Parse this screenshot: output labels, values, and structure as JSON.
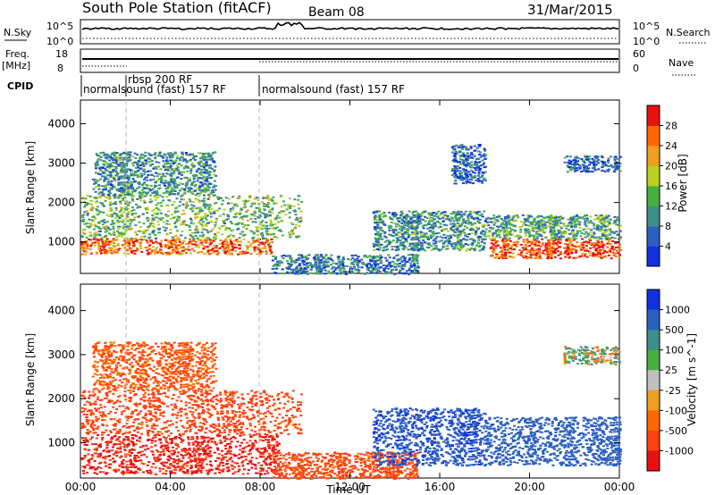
{
  "header": {
    "title": "South Pole Station (fitACF)",
    "beam": "Beam 08",
    "date": "31/Mar/2015"
  },
  "top_panels": {
    "nsky_label": "N.Sky",
    "nsearch_label": "N.Search",
    "nsky_ticks": [
      "10^5",
      "10^0"
    ],
    "nsearch_ticks": [
      "10^5",
      "10^0"
    ],
    "freq_label": "Freq.",
    "freq_unit": "[MHz]",
    "freq_ticks": [
      "18",
      "8"
    ],
    "nave_label": "Nave",
    "nave_ticks": [
      "60",
      "0"
    ],
    "cpid_label": "CPID",
    "cpid_segments": [
      {
        "start": "00:00",
        "text": "normalsound (fast) 157 RF"
      },
      {
        "start": "02:00",
        "text": "rbsp 200 RF"
      },
      {
        "start": "08:00",
        "text": "normalsound (fast) 157 RF"
      }
    ]
  },
  "chart_data": [
    {
      "type": "heatmap",
      "name": "power-panel",
      "ylabel": "Slant Range [km]",
      "yticks": [
        1000,
        2000,
        3000,
        4000
      ],
      "ylim": [
        200,
        4600
      ],
      "xlim_hours": [
        0,
        24
      ],
      "colorbar": {
        "label": "Power [dB]",
        "ticks": [
          4,
          8,
          12,
          16,
          20,
          24,
          28
        ],
        "colors": [
          "#1030e0",
          "#2b5fc0",
          "#3d8f8a",
          "#46b040",
          "#b8d020",
          "#f0a020",
          "#ff6a00",
          "#e81010"
        ]
      },
      "echo_regions": [
        {
          "x": [
            0,
            8.5
          ],
          "y": [
            700,
            1100
          ],
          "value": 26
        },
        {
          "x": [
            0,
            9.8
          ],
          "y": [
            1100,
            2200
          ],
          "value": 14
        },
        {
          "x": [
            0.5,
            6
          ],
          "y": [
            2200,
            3300
          ],
          "value": 10
        },
        {
          "x": [
            8.5,
            15
          ],
          "y": [
            200,
            700
          ],
          "value": 8
        },
        {
          "x": [
            13,
            18
          ],
          "y": [
            800,
            1800
          ],
          "value": 10
        },
        {
          "x": [
            16.5,
            18
          ],
          "y": [
            2500,
            3500
          ],
          "value": 6
        },
        {
          "x": [
            18.2,
            24
          ],
          "y": [
            600,
            1100
          ],
          "value": 28
        },
        {
          "x": [
            18,
            24
          ],
          "y": [
            1100,
            1700
          ],
          "value": 12
        },
        {
          "x": [
            21.5,
            24
          ],
          "y": [
            2800,
            3200
          ],
          "value": 6
        }
      ]
    },
    {
      "type": "heatmap",
      "name": "velocity-panel",
      "ylabel": "Slant Range [km]",
      "yticks": [
        1000,
        2000,
        3000,
        4000
      ],
      "ylim": [
        200,
        4600
      ],
      "xlim_hours": [
        0,
        24
      ],
      "xlabel": "Time UT",
      "xticks": [
        "00:00",
        "04:00",
        "08:00",
        "12:00",
        "16:00",
        "20:00",
        "00:00"
      ],
      "colorbar": {
        "label": "Velocity [m s^-1]",
        "ticks": [
          1000,
          500,
          100,
          25,
          -25,
          -100,
          -500,
          -1000
        ],
        "colors": [
          "#1030e0",
          "#2b5fc0",
          "#3d8f8a",
          "#46b040",
          "#c0c0c0",
          "#f0a020",
          "#ff6a00",
          "#ff4010",
          "#e81010"
        ]
      },
      "echo_regions": [
        {
          "x": [
            0,
            8.8
          ],
          "y": [
            300,
            1200
          ],
          "value": -300
        },
        {
          "x": [
            0,
            9.8
          ],
          "y": [
            1200,
            2200
          ],
          "value": -100
        },
        {
          "x": [
            0.5,
            6
          ],
          "y": [
            2200,
            3300
          ],
          "value": -50
        },
        {
          "x": [
            8.5,
            15
          ],
          "y": [
            200,
            800
          ],
          "value": -80
        },
        {
          "x": [
            13,
            18
          ],
          "y": [
            500,
            1800
          ],
          "value": 200
        },
        {
          "x": [
            18,
            24
          ],
          "y": [
            500,
            1600
          ],
          "value": 150
        },
        {
          "x": [
            21.5,
            24
          ],
          "y": [
            2800,
            3200
          ],
          "value": 0
        }
      ]
    }
  ]
}
